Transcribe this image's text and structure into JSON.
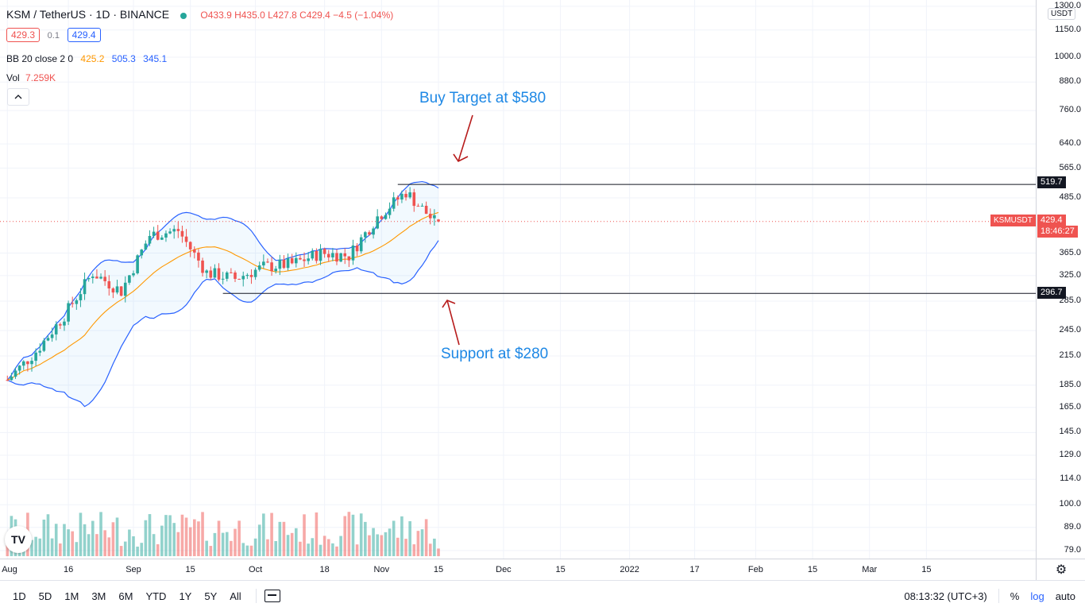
{
  "header": {
    "symbol": "KSM / TetherUS · 1D · BINANCE",
    "ohlc": "O433.9 H435.0 L427.8 C429.4 −4.5 (−1.04%)",
    "bid": "429.3",
    "spread": "0.1",
    "ask": "429.4",
    "bb_label": "BB 20 close 2 0",
    "bb_basis": "425.2",
    "bb_upper": "505.3",
    "bb_lower": "345.1",
    "vol_label": "Vol",
    "vol_value": "7.259K",
    "collapse_icon": "chevron-up-icon"
  },
  "annotations": {
    "buy_target": "Buy Target at $580",
    "support": "Support at $280"
  },
  "price_axis": {
    "currency": "USDT",
    "ticks": [
      "1300.0",
      "1150.0",
      "1000.0",
      "880.0",
      "760.0",
      "640.0",
      "565.0",
      "485.0",
      "365.0",
      "325.0",
      "285.0",
      "245.0",
      "215.0",
      "185.0",
      "165.0",
      "145.0",
      "129.0",
      "114.0",
      "100.0",
      "89.0",
      "79.0"
    ],
    "resistance_label": "519.7",
    "support_label": "296.7",
    "symbol_tag": "KSMUSDT",
    "last_price": "429.4",
    "countdown": "18:46:27"
  },
  "time_axis": {
    "labels": [
      "Aug",
      "16",
      "Sep",
      "15",
      "Oct",
      "18",
      "Nov",
      "15",
      "Dec",
      "15",
      "2022",
      "17",
      "Feb",
      "15",
      "Mar",
      "15"
    ]
  },
  "bottom_bar": {
    "timeframes": [
      "1D",
      "5D",
      "1M",
      "3M",
      "6M",
      "YTD",
      "1Y",
      "5Y",
      "All"
    ],
    "compare_icon": "calendar-range-icon",
    "clock": "08:13:32 (UTC+3)",
    "percent": "%",
    "log": "log",
    "auto": "auto"
  },
  "colors": {
    "up": "#26a69a",
    "down": "#ef5350",
    "bb_band": "#2962ff",
    "bb_basis": "#ff9800",
    "annotation_text": "#1e88e5",
    "arrow": "#b71c1c",
    "tag_bg": "#ef5350"
  },
  "chart_data": {
    "type": "candlestick",
    "title": "KSM / TetherUS · 1D · BINANCE",
    "scale": "log",
    "x_range": [
      "2021-08-01",
      "2022-03-31"
    ],
    "ylim": [
      79,
      1300
    ],
    "grid": true,
    "horizontal_levels": [
      519.7,
      296.7
    ],
    "last_price": 429.4,
    "bollinger_bands": {
      "length": 20,
      "source": "close",
      "mult": 2,
      "basis": 425.2,
      "upper": 505.3,
      "lower": 345.1
    },
    "last_volume": "7.259K",
    "candles_est": [
      {
        "date": "2021-08-01",
        "close": 190
      },
      {
        "date": "2021-08-08",
        "close": 220
      },
      {
        "date": "2021-08-15",
        "close": 265
      },
      {
        "date": "2021-08-22",
        "close": 330
      },
      {
        "date": "2021-08-29",
        "close": 300
      },
      {
        "date": "2021-09-05",
        "close": 400
      },
      {
        "date": "2021-09-12",
        "close": 410
      },
      {
        "date": "2021-09-19",
        "close": 330
      },
      {
        "date": "2021-09-26",
        "close": 320
      },
      {
        "date": "2021-10-03",
        "close": 340
      },
      {
        "date": "2021-10-10",
        "close": 345
      },
      {
        "date": "2021-10-17",
        "close": 365
      },
      {
        "date": "2021-10-24",
        "close": 360
      },
      {
        "date": "2021-10-31",
        "close": 440
      },
      {
        "date": "2021-11-07",
        "close": 500
      },
      {
        "date": "2021-11-14",
        "close": 429.4
      }
    ]
  }
}
